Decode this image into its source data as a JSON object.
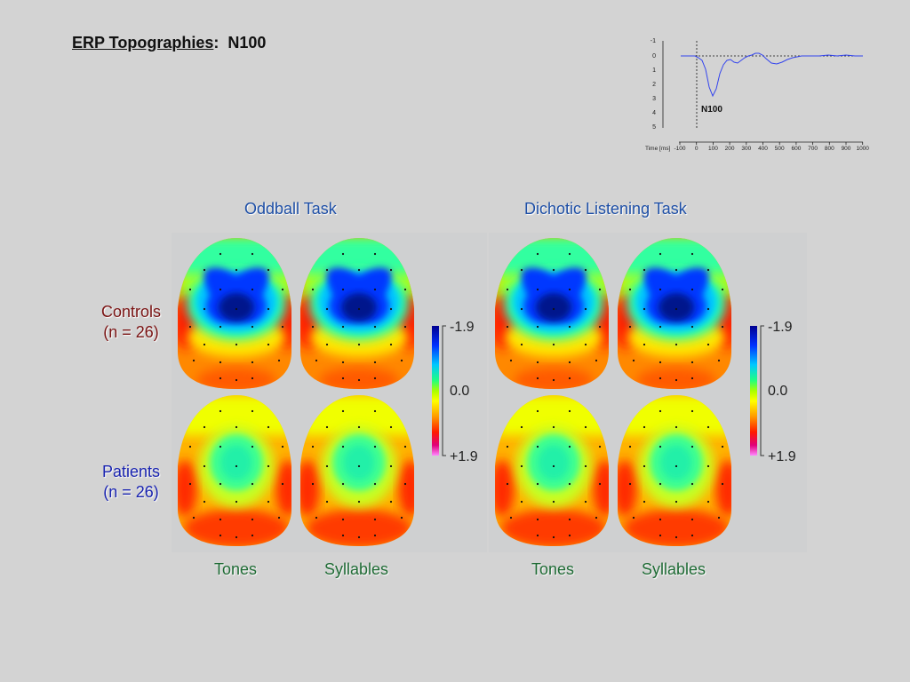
{
  "title": {
    "main": "ERP Topographies",
    "sep": ":",
    "component": "N100"
  },
  "erp_waveform": {
    "y_ticks": [
      "-1",
      "0",
      "1",
      "2",
      "3",
      "4",
      "5"
    ],
    "x_axis_label": "Time [ms]",
    "x_ticks": [
      "-100",
      "0",
      "100",
      "200",
      "300",
      "400",
      "500",
      "600",
      "700",
      "800",
      "900",
      "1000"
    ],
    "peak_label": "N100",
    "line_color": "#3344ee"
  },
  "tasks": {
    "oddball": "Oddball Task",
    "dichotic": "Dichotic Listening Task"
  },
  "groups": {
    "controls": {
      "name": "Controls",
      "n": "(n = 26)"
    },
    "patients": {
      "name": "Patients",
      "n": "(n = 26)"
    }
  },
  "conditions": {
    "tones": "Tones",
    "syllables": "Syllables"
  },
  "color_scale": {
    "top": "-1.9",
    "mid": "0.0",
    "bottom": "+1.9"
  },
  "topo_maps": [
    {
      "group": "Controls",
      "task": "Oddball Task",
      "condition": "Tones",
      "pattern": "strong-negative-central"
    },
    {
      "group": "Controls",
      "task": "Oddball Task",
      "condition": "Syllables",
      "pattern": "strong-negative-central"
    },
    {
      "group": "Controls",
      "task": "Dichotic Listening Task",
      "condition": "Tones",
      "pattern": "strong-negative-central"
    },
    {
      "group": "Controls",
      "task": "Dichotic Listening Task",
      "condition": "Syllables",
      "pattern": "strong-negative-central"
    },
    {
      "group": "Patients",
      "task": "Oddball Task",
      "condition": "Tones",
      "pattern": "weak-central"
    },
    {
      "group": "Patients",
      "task": "Oddball Task",
      "condition": "Syllables",
      "pattern": "weak-central"
    },
    {
      "group": "Patients",
      "task": "Dichotic Listening Task",
      "condition": "Tones",
      "pattern": "weak-central"
    },
    {
      "group": "Patients",
      "task": "Dichotic Listening Task",
      "condition": "Syllables",
      "pattern": "weak-central"
    }
  ]
}
